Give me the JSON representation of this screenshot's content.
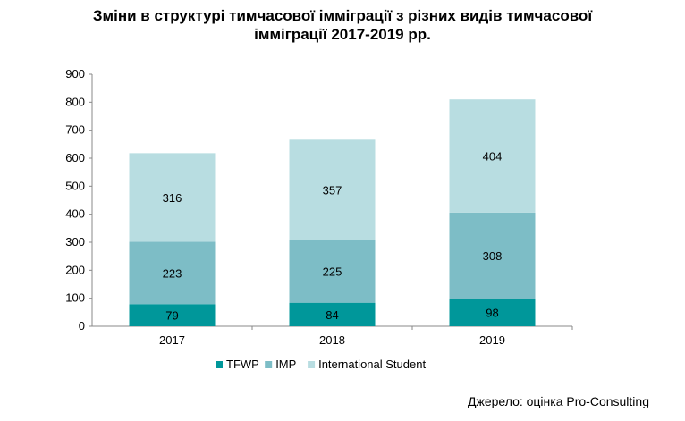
{
  "title_line1": "Зміни в структурі тимчасової імміграції з різних видів тимчасової",
  "title_line2": "імміграції 2017-2019 рр.",
  "source": "Джерело:  оцінка Pro-Consulting",
  "chart_data": {
    "type": "bar",
    "stacked": true,
    "title": "Зміни в структурі тимчасової імміграції з різних видів тимчасової імміграції 2017-2019 рр.",
    "categories": [
      "2017",
      "2018",
      "2019"
    ],
    "series": [
      {
        "name": "TFWP",
        "values": [
          79,
          84,
          98
        ],
        "color": "#00979a"
      },
      {
        "name": "IMP",
        "values": [
          223,
          225,
          308
        ],
        "color": "#7dbdc6"
      },
      {
        "name": "International Student",
        "values": [
          316,
          357,
          404
        ],
        "color": "#b8dde1"
      }
    ],
    "ylim": [
      0,
      900
    ],
    "yticks": [
      0,
      100,
      200,
      300,
      400,
      500,
      600,
      700,
      800,
      900
    ],
    "grid": false,
    "legend": "bottom"
  }
}
